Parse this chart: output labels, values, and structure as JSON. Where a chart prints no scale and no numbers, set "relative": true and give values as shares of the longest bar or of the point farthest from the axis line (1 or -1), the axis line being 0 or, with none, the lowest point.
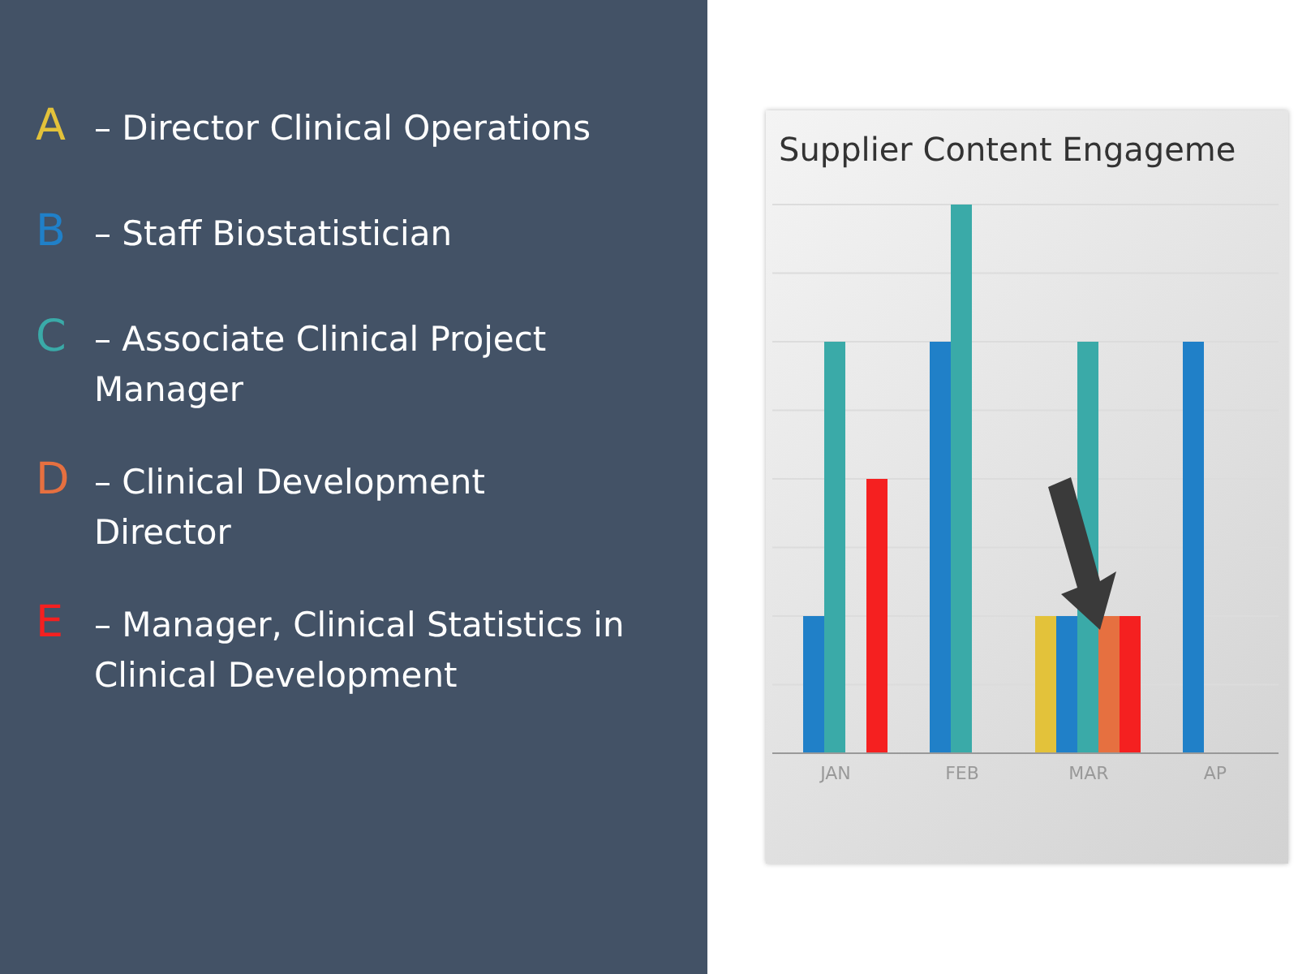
{
  "chart_data": {
    "type": "bar",
    "title": "Supplier Content Engageme",
    "categories": [
      "JAN",
      "FEB",
      "MAR",
      "AP"
    ],
    "relative": true,
    "grid": "y",
    "legend": "left",
    "series": [
      {
        "name": "A",
        "color": "#e3c23a",
        "values": [
          null,
          null,
          0.25,
          null
        ]
      },
      {
        "name": "B",
        "color": "#2080c8",
        "values": [
          0.25,
          0.75,
          0.25,
          0.75
        ]
      },
      {
        "name": "C",
        "color": "#3aaaa8",
        "values": [
          0.75,
          1,
          0.75,
          null
        ]
      },
      {
        "name": "D",
        "color": "#e67040",
        "values": [
          null,
          null,
          0.25,
          null
        ]
      },
      {
        "name": "E",
        "color": "#f52020",
        "values": [
          0.5,
          null,
          0.25,
          null
        ]
      }
    ],
    "annotations": [
      "– Director Clinical Operations",
      "– Staff Biostatistician",
      "– Associate Clinical Project Manager",
      "– Clinical Development Director",
      "– Manager, Clinical Statistics in Clinical Development"
    ]
  }
}
